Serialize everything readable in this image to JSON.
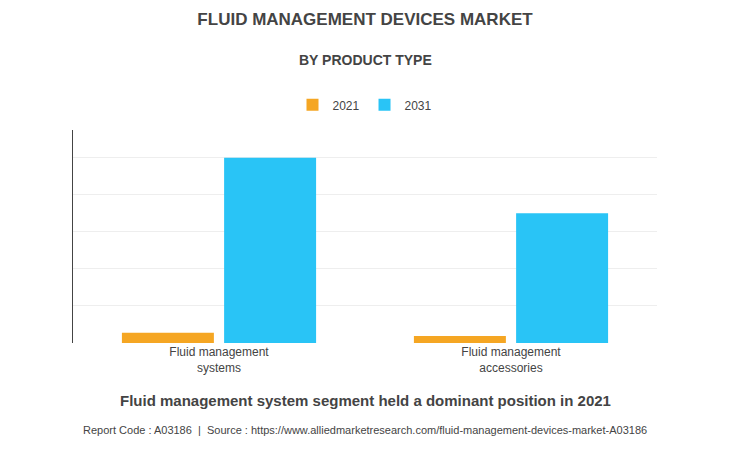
{
  "chart_data": {
    "type": "bar",
    "title": "FLUID MANAGEMENT DEVICES MARKET",
    "subtitle": "BY PRODUCT TYPE",
    "categories": [
      "Fluid management\nsystems",
      "Fluid management\naccessories"
    ],
    "series": [
      {
        "name": "2021",
        "color": "#F5A623",
        "values": [
          0.55,
          0.38
        ]
      },
      {
        "name": "2031",
        "color": "#29C4F6",
        "values": [
          10.0,
          7.0
        ]
      }
    ],
    "ylim": [
      0,
      11.5
    ],
    "yticks": [
      0,
      2,
      4,
      6,
      8,
      10
    ],
    "grid": true,
    "tick_labels": "x",
    "legend": "top",
    "annotations": [
      "Fluid management system segment held a dominant position in 2021",
      "Report Code : A03186  |  Source : https://www.alliedmarketresearch.com/fluid-management-devices-market-A03186"
    ]
  }
}
